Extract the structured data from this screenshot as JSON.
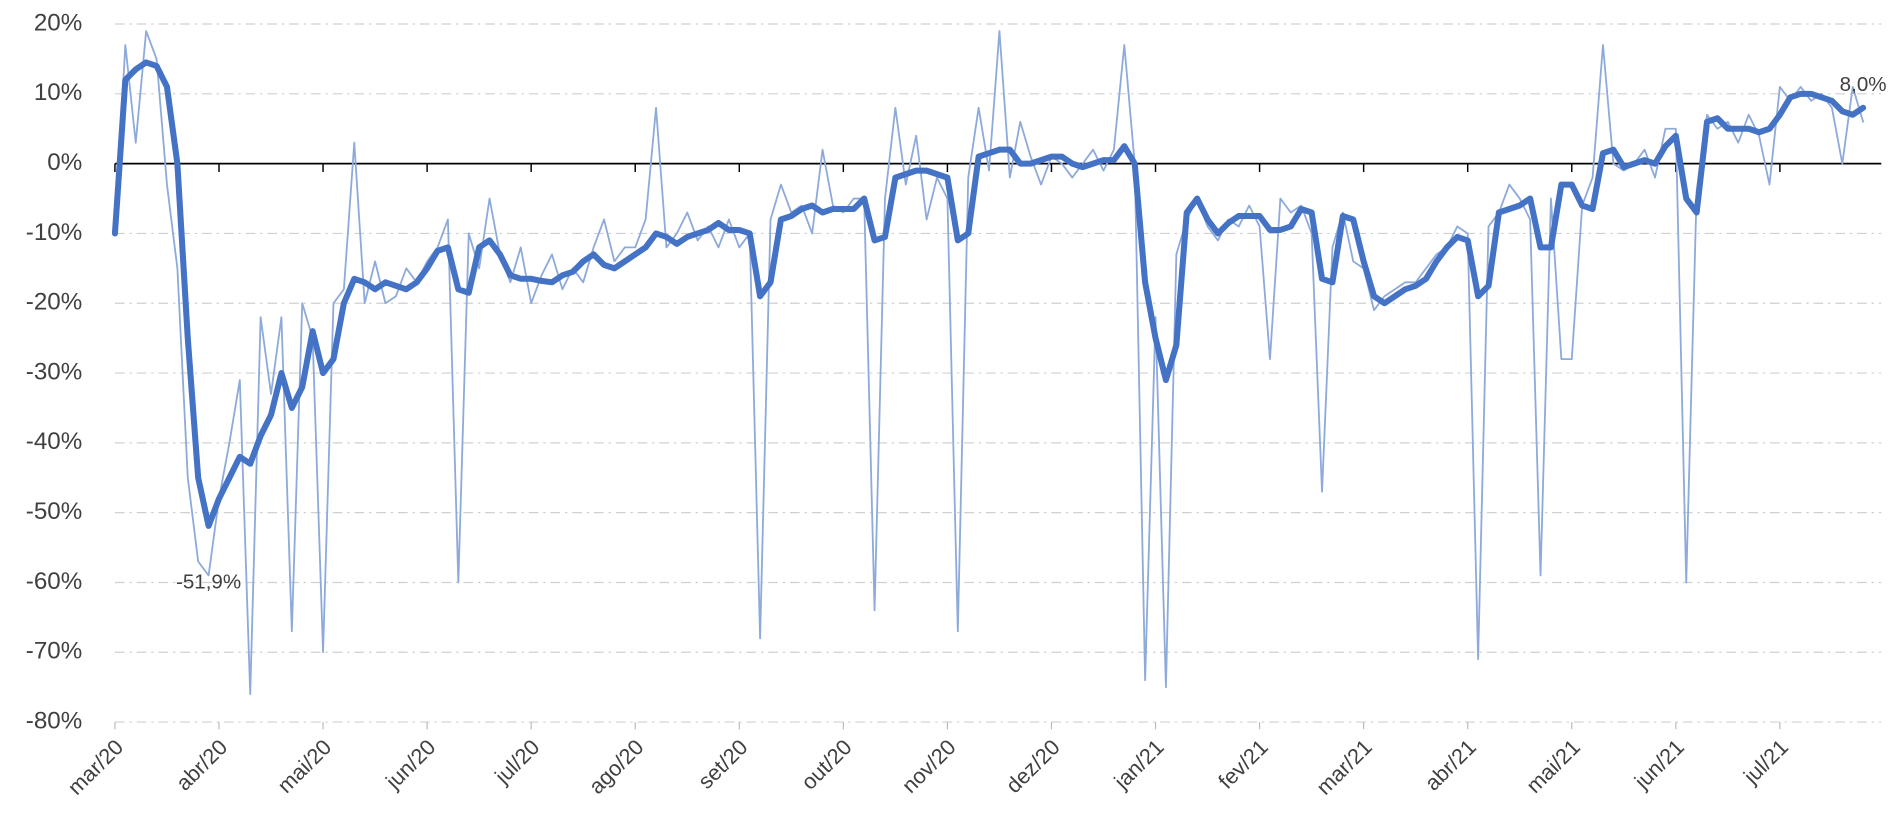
{
  "chart_data": {
    "type": "line",
    "categories": [
      "mar/20",
      null,
      null,
      null,
      null,
      null,
      null,
      null,
      null,
      null,
      "abr/20",
      null,
      null,
      null,
      null,
      null,
      null,
      null,
      null,
      null,
      "mai/20",
      null,
      null,
      null,
      null,
      null,
      null,
      null,
      null,
      null,
      "jun/20",
      null,
      null,
      null,
      null,
      null,
      null,
      null,
      null,
      null,
      "jul/20",
      null,
      null,
      null,
      null,
      null,
      null,
      null,
      null,
      null,
      "ago/20",
      null,
      null,
      null,
      null,
      null,
      null,
      null,
      null,
      null,
      "set/20",
      null,
      null,
      null,
      null,
      null,
      null,
      null,
      null,
      null,
      "out/20",
      null,
      null,
      null,
      null,
      null,
      null,
      null,
      null,
      null,
      "nov/20",
      null,
      null,
      null,
      null,
      null,
      null,
      null,
      null,
      null,
      "dez/20",
      null,
      null,
      null,
      null,
      null,
      null,
      null,
      null,
      null,
      "jan/21",
      null,
      null,
      null,
      null,
      null,
      null,
      null,
      null,
      null,
      "fev/21",
      null,
      null,
      null,
      null,
      null,
      null,
      null,
      null,
      null,
      "mar/21",
      null,
      null,
      null,
      null,
      null,
      null,
      null,
      null,
      null,
      "abr/21",
      null,
      null,
      null,
      null,
      null,
      null,
      null,
      null,
      null,
      "mai/21",
      null,
      null,
      null,
      null,
      null,
      null,
      null,
      null,
      null,
      "jun/21",
      null,
      null,
      null,
      null,
      null,
      null,
      null,
      null,
      null,
      "jul/21",
      null,
      null,
      null,
      null,
      null,
      null,
      null,
      null
    ],
    "series": [
      {
        "color": "#8eaadb",
        "width": 1.5,
        "values": [
          -10,
          17,
          3,
          19,
          15,
          -3,
          -15,
          -45,
          -57,
          -59,
          -48,
          -40,
          -31,
          -76,
          -22,
          -33,
          -22,
          -67,
          -20,
          -25,
          -70,
          -20,
          -18,
          3,
          -20,
          -14,
          -20,
          -19,
          -15,
          -17,
          -14,
          -12,
          -8,
          -60,
          -10,
          -15,
          -5,
          -13,
          -17,
          -12,
          -20,
          -16,
          -13,
          -18,
          -15,
          -17,
          -12,
          -8,
          -14,
          -12,
          -12,
          -8,
          8,
          -12,
          -10,
          -7,
          -11,
          -9,
          -12,
          -8,
          -12,
          -10,
          -68,
          -8,
          -3,
          -7,
          -6,
          -10,
          2,
          -6,
          -7,
          -5,
          -5,
          -64,
          -5,
          8,
          -3,
          4,
          -8,
          -2,
          -5,
          -67,
          -2,
          8,
          -1,
          19,
          -2,
          6,
          1,
          -3,
          1,
          0,
          -2,
          0,
          2,
          -1,
          2,
          17,
          0,
          -74,
          -22,
          -75,
          -13,
          -8,
          -5,
          -9,
          -11,
          -8,
          -9,
          -6,
          -9,
          -28,
          -5,
          -7,
          -6,
          -10,
          -47,
          -12,
          -7,
          -14,
          -15,
          -21,
          -19,
          -18,
          -17,
          -17,
          -15,
          -13,
          -12,
          -9,
          -10,
          -71,
          -9,
          -7,
          -3,
          -5,
          -8,
          -59,
          -5,
          -28,
          -28,
          -6,
          -2,
          17,
          0,
          -1,
          0,
          2,
          -2,
          5,
          5,
          -60,
          -4,
          7,
          5,
          6,
          3,
          7,
          4,
          -3,
          11,
          9,
          11,
          9,
          10,
          8,
          0,
          11,
          6
        ]
      },
      {
        "color": "#4472c4",
        "width": 5,
        "values": [
          -10,
          12,
          13.5,
          14.5,
          14,
          11,
          0,
          -25,
          -45,
          -51.9,
          -48,
          -45,
          -42,
          -43,
          -39,
          -36,
          -30,
          -35,
          -32,
          -24,
          -30,
          -28,
          -20,
          -16.5,
          -17,
          -18,
          -17,
          -17.5,
          -18,
          -17,
          -15,
          -12.5,
          -12,
          -18,
          -18.5,
          -12,
          -11,
          -13,
          -16,
          -16.5,
          -16.5,
          -16.8,
          -17,
          -16,
          -15.5,
          -14,
          -13,
          -14.5,
          -15,
          -14,
          -13,
          -12,
          -10,
          -10.5,
          -11.5,
          -10.5,
          -10,
          -9.5,
          -8.5,
          -9.5,
          -9.5,
          -10,
          -19,
          -17,
          -8,
          -7.5,
          -6.5,
          -6,
          -7,
          -6.5,
          -6.5,
          -6.5,
          -5,
          -11,
          -10.5,
          -2,
          -1.5,
          -1,
          -1,
          -1.5,
          -2,
          -11,
          -10,
          1,
          1.5,
          2,
          2,
          0,
          0,
          0.5,
          1,
          1,
          0,
          -0.5,
          0,
          0.5,
          0.5,
          2.5,
          0,
          -17,
          -25,
          -31,
          -26,
          -7,
          -5,
          -8,
          -10,
          -8.5,
          -7.5,
          -7.5,
          -7.5,
          -9.5,
          -9.5,
          -9,
          -6.5,
          -7,
          -16.5,
          -17,
          -7.5,
          -8,
          -14,
          -19,
          -20,
          -19,
          -18,
          -17.5,
          -16.5,
          -14,
          -12,
          -10.5,
          -11,
          -19,
          -17.5,
          -7,
          -6.5,
          -6,
          -5,
          -12,
          -12,
          -3,
          -3,
          -6,
          -6.5,
          1.5,
          2,
          -0.5,
          0,
          0.5,
          0,
          2.5,
          4,
          -5,
          -7,
          6,
          6.5,
          5,
          5,
          5,
          4.5,
          5,
          7,
          9.5,
          10,
          10,
          9.5,
          9,
          7.5,
          7,
          8.0
        ],
        "value_labels": [
          null,
          null,
          null,
          null,
          null,
          null,
          null,
          null,
          null,
          "-51,9%",
          null,
          null,
          null,
          null,
          null,
          null,
          null,
          null,
          null,
          null,
          null,
          null,
          null,
          null,
          null,
          null,
          null,
          null,
          null,
          null,
          null,
          null,
          null,
          null,
          null,
          null,
          null,
          null,
          null,
          null,
          null,
          null,
          null,
          null,
          null,
          null,
          null,
          null,
          null,
          null,
          null,
          null,
          null,
          null,
          null,
          null,
          null,
          null,
          null,
          null,
          null,
          null,
          null,
          null,
          null,
          null,
          null,
          null,
          null,
          null,
          null,
          null,
          null,
          null,
          null,
          null,
          null,
          null,
          null,
          null,
          null,
          null,
          null,
          null,
          null,
          null,
          null,
          null,
          null,
          null,
          null,
          null,
          null,
          null,
          null,
          null,
          null,
          null,
          null,
          null,
          null,
          null,
          null,
          null,
          null,
          null,
          null,
          null,
          null,
          null,
          null,
          null,
          null,
          null,
          null,
          null,
          null,
          null,
          null,
          null,
          null,
          null,
          null,
          null,
          null,
          null,
          null,
          null,
          null,
          null,
          null,
          null,
          null,
          null,
          null,
          null,
          null,
          null,
          null,
          null,
          null,
          null,
          null,
          null,
          null,
          null,
          null,
          null,
          null,
          null,
          null,
          null,
          null,
          null,
          null,
          null,
          null,
          null,
          null,
          null,
          null,
          null,
          null,
          null,
          null,
          null,
          null,
          null,
          "8,0%"
        ]
      }
    ],
    "ylim": [
      -80,
      20
    ],
    "yticks": [
      {
        "value": -80,
        "label": "-80%"
      },
      {
        "value": -70,
        "label": "-70%"
      },
      {
        "value": -60,
        "label": "-60%"
      },
      {
        "value": -50,
        "label": "-50%"
      },
      {
        "value": -40,
        "label": "-40%"
      },
      {
        "value": -30,
        "label": "-30%"
      },
      {
        "value": -20,
        "label": "-20%"
      },
      {
        "value": -10,
        "label": "-10%"
      },
      {
        "value": 0,
        "label": "0%"
      },
      {
        "value": 10,
        "label": "10%"
      },
      {
        "value": 20,
        "label": "20%"
      }
    ],
    "grid": true
  }
}
